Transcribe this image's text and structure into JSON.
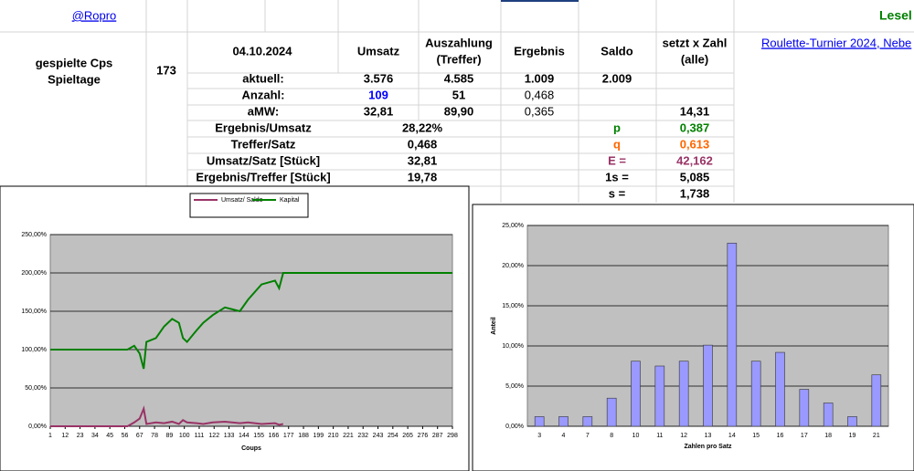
{
  "sheet": {
    "link_left": "@Ropro",
    "title_right": "Lesel",
    "link_right": "Roulette-Turnier 2024, Nebe",
    "played_labels": [
      "gespielte Cps",
      "Spieltage"
    ],
    "played_value": "173",
    "date": "04.10.2024",
    "headers": [
      [
        "Umsatz"
      ],
      [
        "Auszahlung",
        "(Treffer)"
      ],
      [
        "Ergebnis"
      ],
      [
        "Saldo"
      ],
      [
        "setzt x Zahl",
        "(alle)"
      ]
    ],
    "rows": [
      [
        "aktuell:",
        "3.576",
        "4.585",
        "1.009",
        "2.009",
        null
      ],
      [
        "Anzahl:",
        "109",
        "51",
        "0,468",
        null,
        null
      ],
      [
        "aMW:",
        "32,81",
        "89,90",
        "0,365",
        null,
        "14,31"
      ]
    ],
    "ratio_rows": [
      [
        "Ergebnis/Umsatz",
        "28,22%",
        "p",
        "0,387"
      ],
      [
        "Treffer/Satz",
        "0,468",
        "q",
        "0,613"
      ],
      [
        "Umsatz/Satz [Stück]",
        "32,81",
        "E =",
        "42,162"
      ],
      [
        "Ergebnis/Treffer [Stück]",
        "19,78",
        "1s =",
        "5,085"
      ],
      [
        null,
        null,
        "s =",
        "1,738"
      ]
    ]
  },
  "chart_data": [
    {
      "type": "line",
      "x_label": "Coups",
      "legend": "top",
      "grid": true,
      "x": [
        1,
        58,
        63,
        67,
        70,
        72,
        79,
        85,
        91,
        96,
        99,
        102,
        109,
        114,
        121,
        130,
        141,
        147,
        157,
        167,
        170,
        173,
        298
      ],
      "series": [
        {
          "name": "Umsatz/ Saldo",
          "color": "#993366",
          "values": [
            0,
            0,
            5,
            10,
            23,
            3,
            5,
            4,
            6,
            3,
            8,
            5,
            4,
            3,
            5,
            6,
            4,
            5,
            3,
            4,
            2,
            3,
            null
          ]
        },
        {
          "name": "Kapital",
          "color": "#008000",
          "values": [
            100,
            100,
            105,
            95,
            75,
            110,
            115,
            130,
            140,
            135,
            115,
            110,
            125,
            135,
            145,
            155,
            150,
            165,
            185,
            190,
            180,
            200,
            200
          ]
        }
      ],
      "xlim": [
        1,
        298
      ],
      "xticks": [
        1,
        12,
        23,
        34,
        45,
        56,
        67,
        78,
        89,
        100,
        111,
        122,
        133,
        144,
        155,
        166,
        177,
        188,
        199,
        210,
        221,
        232,
        243,
        254,
        265,
        276,
        287,
        298
      ],
      "ylim": [
        0,
        250
      ],
      "yticks": [
        {
          "value": 0,
          "label": "0,00%"
        },
        {
          "value": 50,
          "label": "50,00%"
        },
        {
          "value": 100,
          "label": "100,00%"
        },
        {
          "value": 150,
          "label": "150,00%"
        },
        {
          "value": 200,
          "label": "200,00%"
        },
        {
          "value": 250,
          "label": "250,00%"
        }
      ]
    },
    {
      "type": "bar",
      "x_label": "Zahlen pro Satz",
      "y_label": "Anteil",
      "grid": true,
      "color": "#9999ff",
      "categories": [
        "3",
        "4",
        "7",
        "8",
        "10",
        "11",
        "12",
        "13",
        "14",
        "15",
        "16",
        "17",
        "18",
        "19",
        "21"
      ],
      "values": [
        1.2,
        1.2,
        1.2,
        3.5,
        8.1,
        7.5,
        8.1,
        10.1,
        22.8,
        8.1,
        9.2,
        4.6,
        2.9,
        1.2,
        6.4
      ],
      "ylim": [
        0,
        25
      ],
      "yticks": [
        {
          "value": 0,
          "label": "0,00%"
        },
        {
          "value": 5,
          "label": "5,00%"
        },
        {
          "value": 10,
          "label": "10,00%"
        },
        {
          "value": 15,
          "label": "15,00%"
        },
        {
          "value": 20,
          "label": "20,00%"
        },
        {
          "value": 25,
          "label": "25,00%"
        }
      ]
    }
  ]
}
